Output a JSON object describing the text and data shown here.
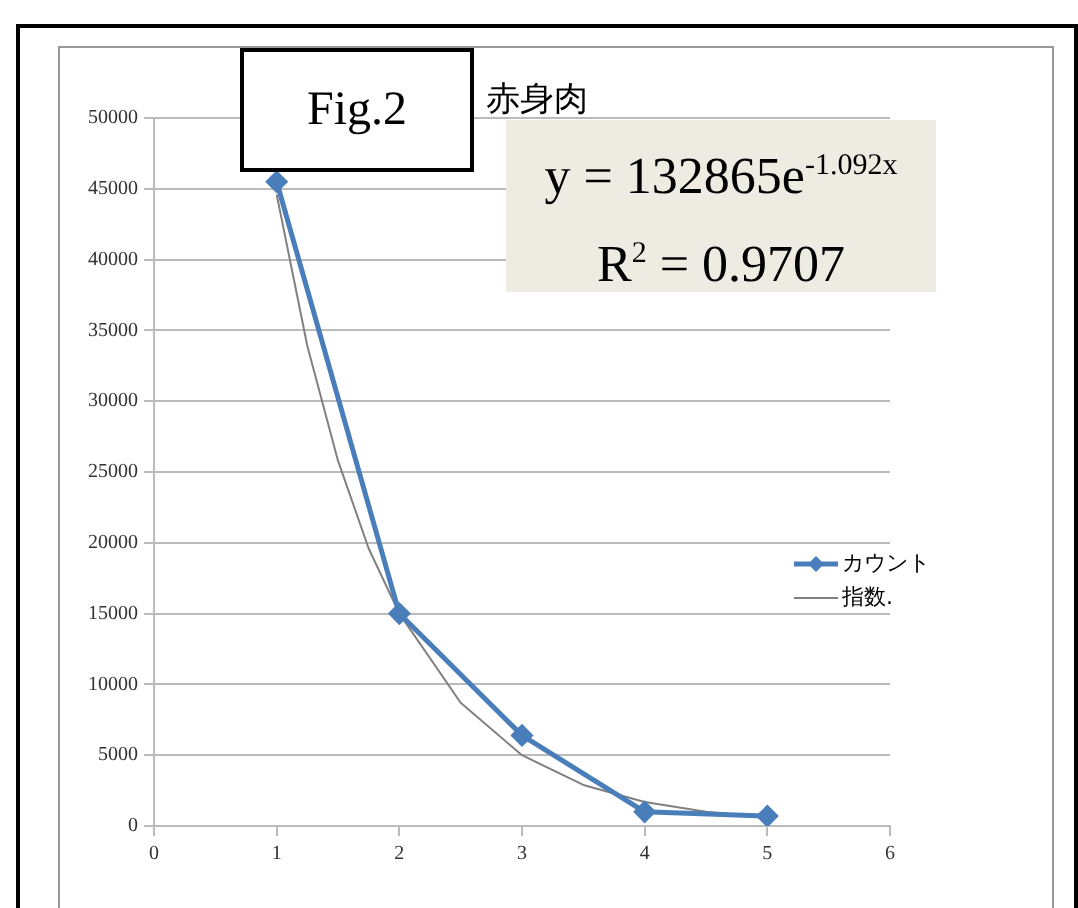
{
  "chart_data": {
    "type": "line",
    "title": "赤身肉",
    "annotations": [
      "Fig.2",
      "y = 132865e$^{-1.092x}$",
      "R$^{2}$ = 0.9707"
    ],
    "xlim": [
      0,
      6
    ],
    "xticks": [
      0,
      1,
      2,
      3,
      4,
      5,
      6
    ],
    "ylim": [
      0,
      50000
    ],
    "yticks": [
      0,
      5000,
      10000,
      15000,
      20000,
      25000,
      30000,
      35000,
      40000,
      45000,
      50000
    ],
    "grid": "y",
    "legend": "right",
    "series": [
      {
        "name": "カウント",
        "color": "#4a7ebb",
        "marker": "diamond",
        "x": [
          1,
          2,
          3,
          4,
          5
        ],
        "values": [
          45500,
          15000,
          6400,
          1000,
          700
        ]
      },
      {
        "name": "指数.",
        "type": "line",
        "color": "#808080",
        "marker": "none",
        "x": [
          1,
          1.25,
          1.5,
          1.75,
          2,
          2.5,
          3,
          3.5,
          4,
          4.5,
          5
        ],
        "values": [
          44600,
          33900,
          25800,
          19600,
          15000,
          8700,
          5000,
          2900,
          1700,
          1000,
          600
        ]
      }
    ]
  }
}
